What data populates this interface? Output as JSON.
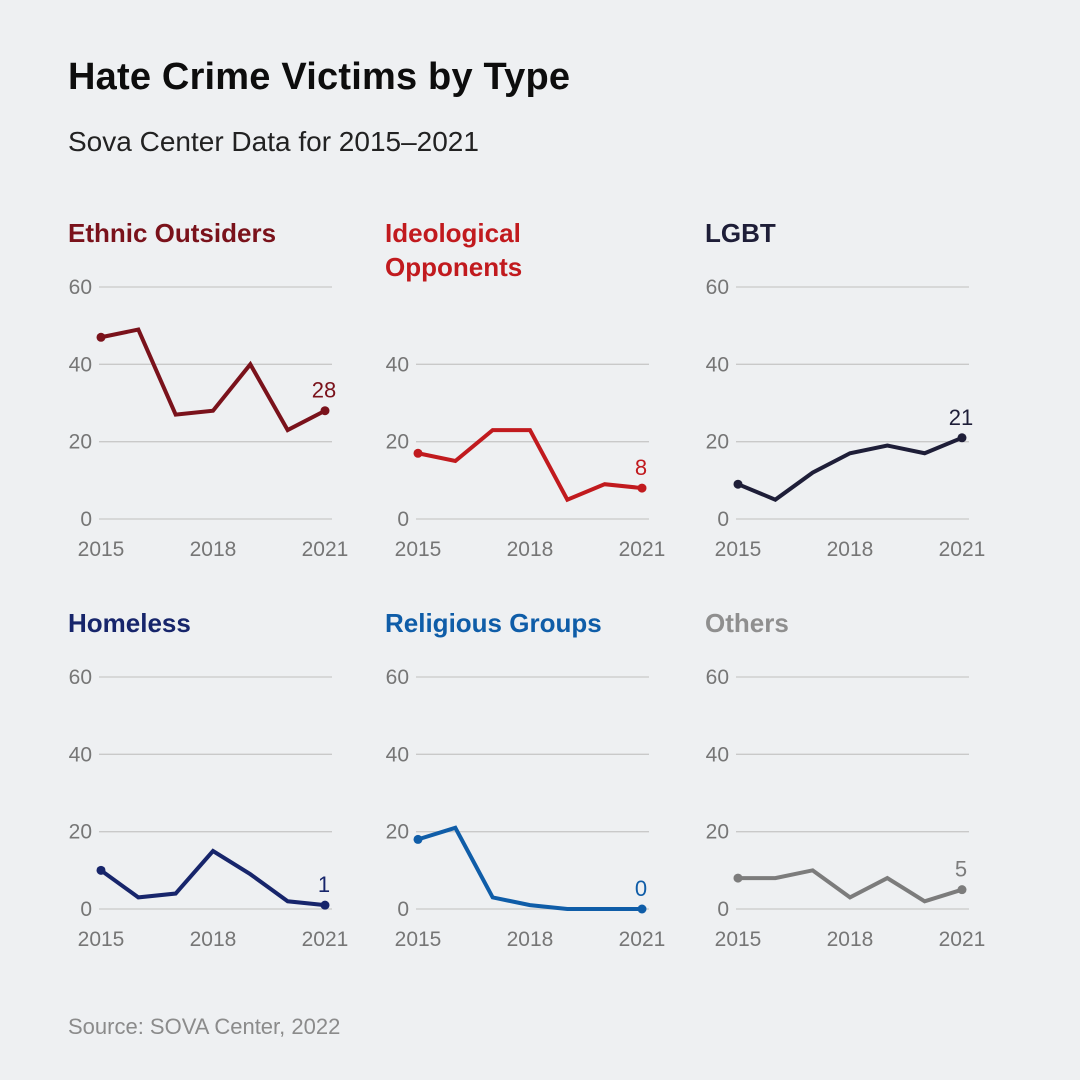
{
  "header": {
    "title": "Hate Crime Victims by Type",
    "subtitle": "Sova Center Data for 2015–2021"
  },
  "source": "Source: SOVA Center, 2022",
  "colors": {
    "background": "#eef0f2",
    "gridline": "#c9c9c9",
    "tick_label": "#767676"
  },
  "chart_data": [
    {
      "type": "line",
      "name": "Ethnic Outsiders",
      "color": "#7a121b",
      "x": [
        2015,
        2016,
        2017,
        2018,
        2019,
        2020,
        2021
      ],
      "values": [
        47,
        49,
        27,
        28,
        40,
        23,
        28
      ],
      "end_label": "28",
      "yticks": [
        0,
        20,
        40,
        60
      ],
      "xticks": [
        "2015",
        "2018",
        "2021"
      ],
      "ylim": [
        0,
        60
      ]
    },
    {
      "type": "line",
      "name": "Ideological Opponents",
      "color": "#c11a1e",
      "x": [
        2015,
        2016,
        2017,
        2018,
        2019,
        2020,
        2021
      ],
      "values": [
        17,
        15,
        23,
        23,
        5,
        9,
        8
      ],
      "end_label": "8",
      "yticks": [
        0,
        20,
        40
      ],
      "xticks": [
        "2015",
        "2018",
        "2021"
      ],
      "ylim": [
        0,
        60
      ]
    },
    {
      "type": "line",
      "name": "LGBT",
      "color": "#1e1e38",
      "x": [
        2015,
        2016,
        2017,
        2018,
        2019,
        2020,
        2021
      ],
      "values": [
        9,
        5,
        12,
        17,
        19,
        17,
        21
      ],
      "end_label": "21",
      "yticks": [
        0,
        20,
        40,
        60
      ],
      "xticks": [
        "2015",
        "2018",
        "2021"
      ],
      "ylim": [
        0,
        60
      ]
    },
    {
      "type": "line",
      "name": "Homeless",
      "color": "#17256b",
      "x": [
        2015,
        2016,
        2017,
        2018,
        2019,
        2020,
        2021
      ],
      "values": [
        10,
        3,
        4,
        15,
        9,
        2,
        1
      ],
      "end_label": "1",
      "yticks": [
        0,
        20,
        40,
        60
      ],
      "xticks": [
        "2015",
        "2018",
        "2021"
      ],
      "ylim": [
        0,
        60
      ]
    },
    {
      "type": "line",
      "name": "Religious Groups",
      "color": "#0f5da8",
      "x": [
        2015,
        2016,
        2017,
        2018,
        2019,
        2020,
        2021
      ],
      "values": [
        18,
        21,
        3,
        1,
        0,
        0,
        0
      ],
      "end_label": "0",
      "yticks": [
        0,
        20,
        40,
        60
      ],
      "xticks": [
        "2015",
        "2018",
        "2021"
      ],
      "ylim": [
        0,
        60
      ]
    },
    {
      "type": "line",
      "name": "Others",
      "color": "#7c7c7c",
      "title_color": "#8f8f8f",
      "x": [
        2015,
        2016,
        2017,
        2018,
        2019,
        2020,
        2021
      ],
      "values": [
        8,
        8,
        10,
        3,
        8,
        2,
        5
      ],
      "end_label": "5",
      "yticks": [
        0,
        20,
        40,
        60
      ],
      "xticks": [
        "2015",
        "2018",
        "2021"
      ],
      "ylim": [
        0,
        60
      ]
    }
  ]
}
